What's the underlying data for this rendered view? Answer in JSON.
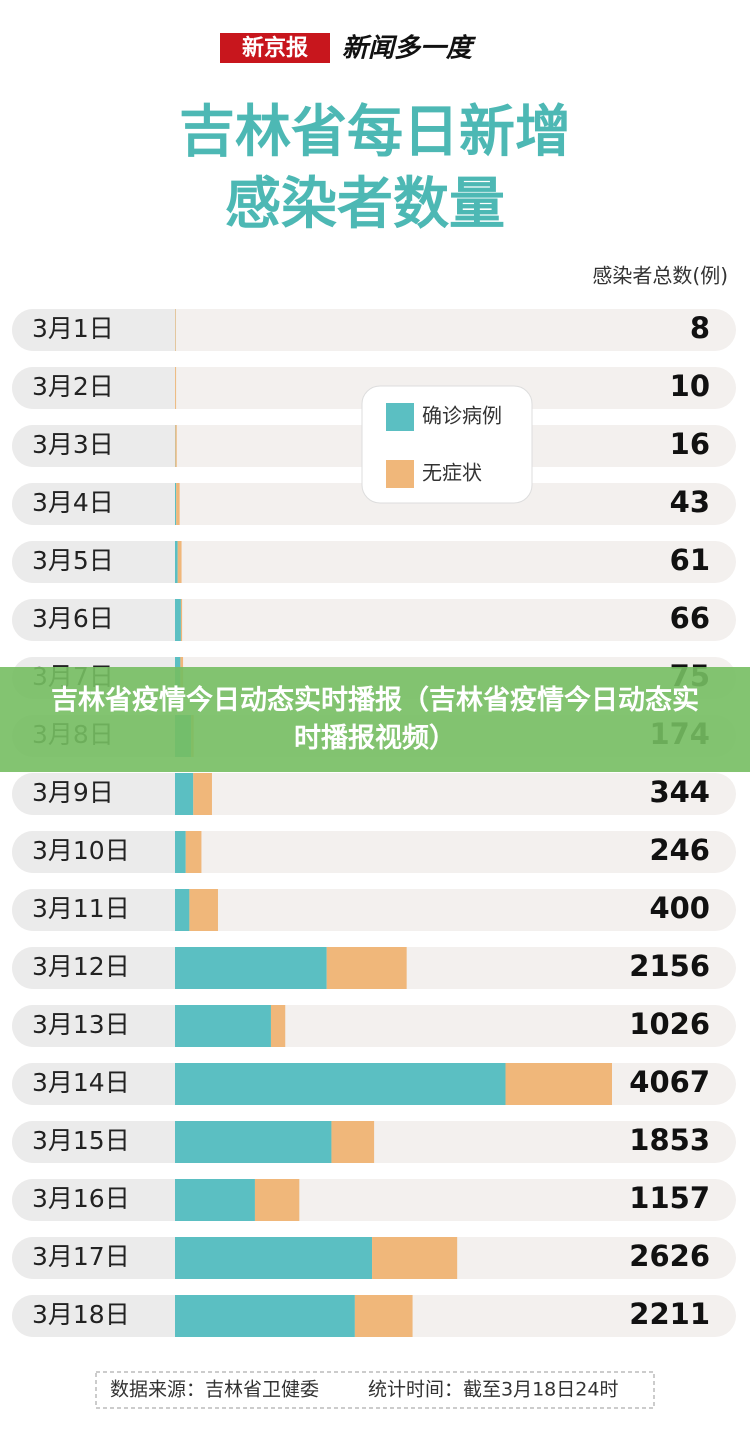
{
  "header": {
    "logo": "新京报",
    "slogan": "新闻多一度"
  },
  "chart_data": {
    "type": "stacked-bar",
    "title": [
      "吉林省每日新增",
      "感染者数量"
    ],
    "axis_label": "感染者总数(例)",
    "categories": [
      "3月1日",
      "3月2日",
      "3月3日",
      "3月4日",
      "3月5日",
      "3月6日",
      "3月7日",
      "3月8日",
      "3月9日",
      "3月10日",
      "3月11日",
      "3月12日",
      "3月13日",
      "3月14日",
      "3月15日",
      "3月16日",
      "3月17日",
      "3月18日"
    ],
    "series": [
      {
        "name": "确诊病例",
        "color": "#5bbfc2",
        "values": [
          2,
          1,
          3,
          11,
          25,
          55,
          50,
          150,
          170,
          100,
          134,
          1412,
          893,
          3076,
          1456,
          744,
          1834,
          1674
        ]
      },
      {
        "name": "无症状",
        "color": "#f0b77a",
        "values": [
          6,
          9,
          13,
          32,
          36,
          11,
          25,
          24,
          174,
          146,
          266,
          744,
          133,
          991,
          397,
          413,
          792,
          537
        ]
      }
    ],
    "totals": [
      8,
      10,
      16,
      43,
      61,
      66,
      75,
      174,
      344,
      246,
      400,
      2156,
      1026,
      4067,
      1853,
      1157,
      2626,
      2211
    ],
    "xlim": [
      0,
      4067
    ],
    "source": "数据来源：吉林省卫健委",
    "time": "统计时间：截至3月18日24时"
  },
  "banner": "吉林省疫情今日动态实时播报（吉林省疫情今日动态实时播报视频）"
}
